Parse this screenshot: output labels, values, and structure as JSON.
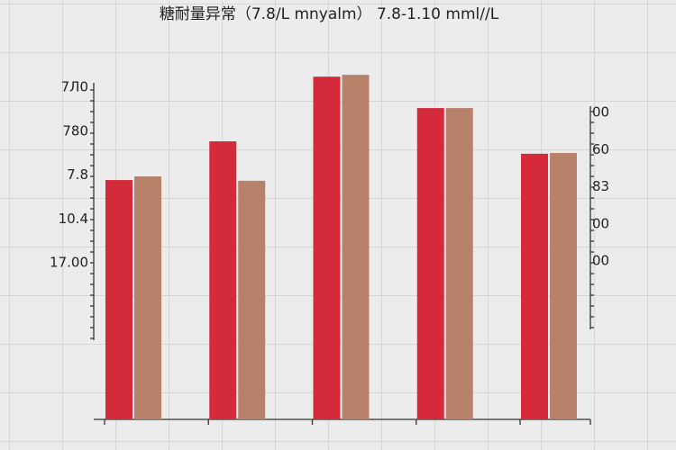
{
  "chart_data": {
    "type": "bar",
    "title": "糖耐量异常（7.8/L mnyalm） 7.8-1.10 mml//L",
    "categories": [
      null,
      null,
      null,
      null,
      null
    ],
    "series": [
      {
        "color": "#d42a3a",
        "values": [
          6.55,
          7.61,
          9.38,
          8.52,
          7.27
        ]
      },
      {
        "color": "#b8826a",
        "values": [
          6.65,
          6.53,
          9.43,
          8.52,
          7.29
        ]
      }
    ],
    "ylim": [
      0,
      10
    ],
    "left_axis_labels": [
      "7Л0",
      "780",
      "7.8",
      "10.4",
      "17.00"
    ],
    "right_axis_labels": [
      "00",
      "60",
      "83",
      "00",
      "00"
    ],
    "grid": true
  }
}
